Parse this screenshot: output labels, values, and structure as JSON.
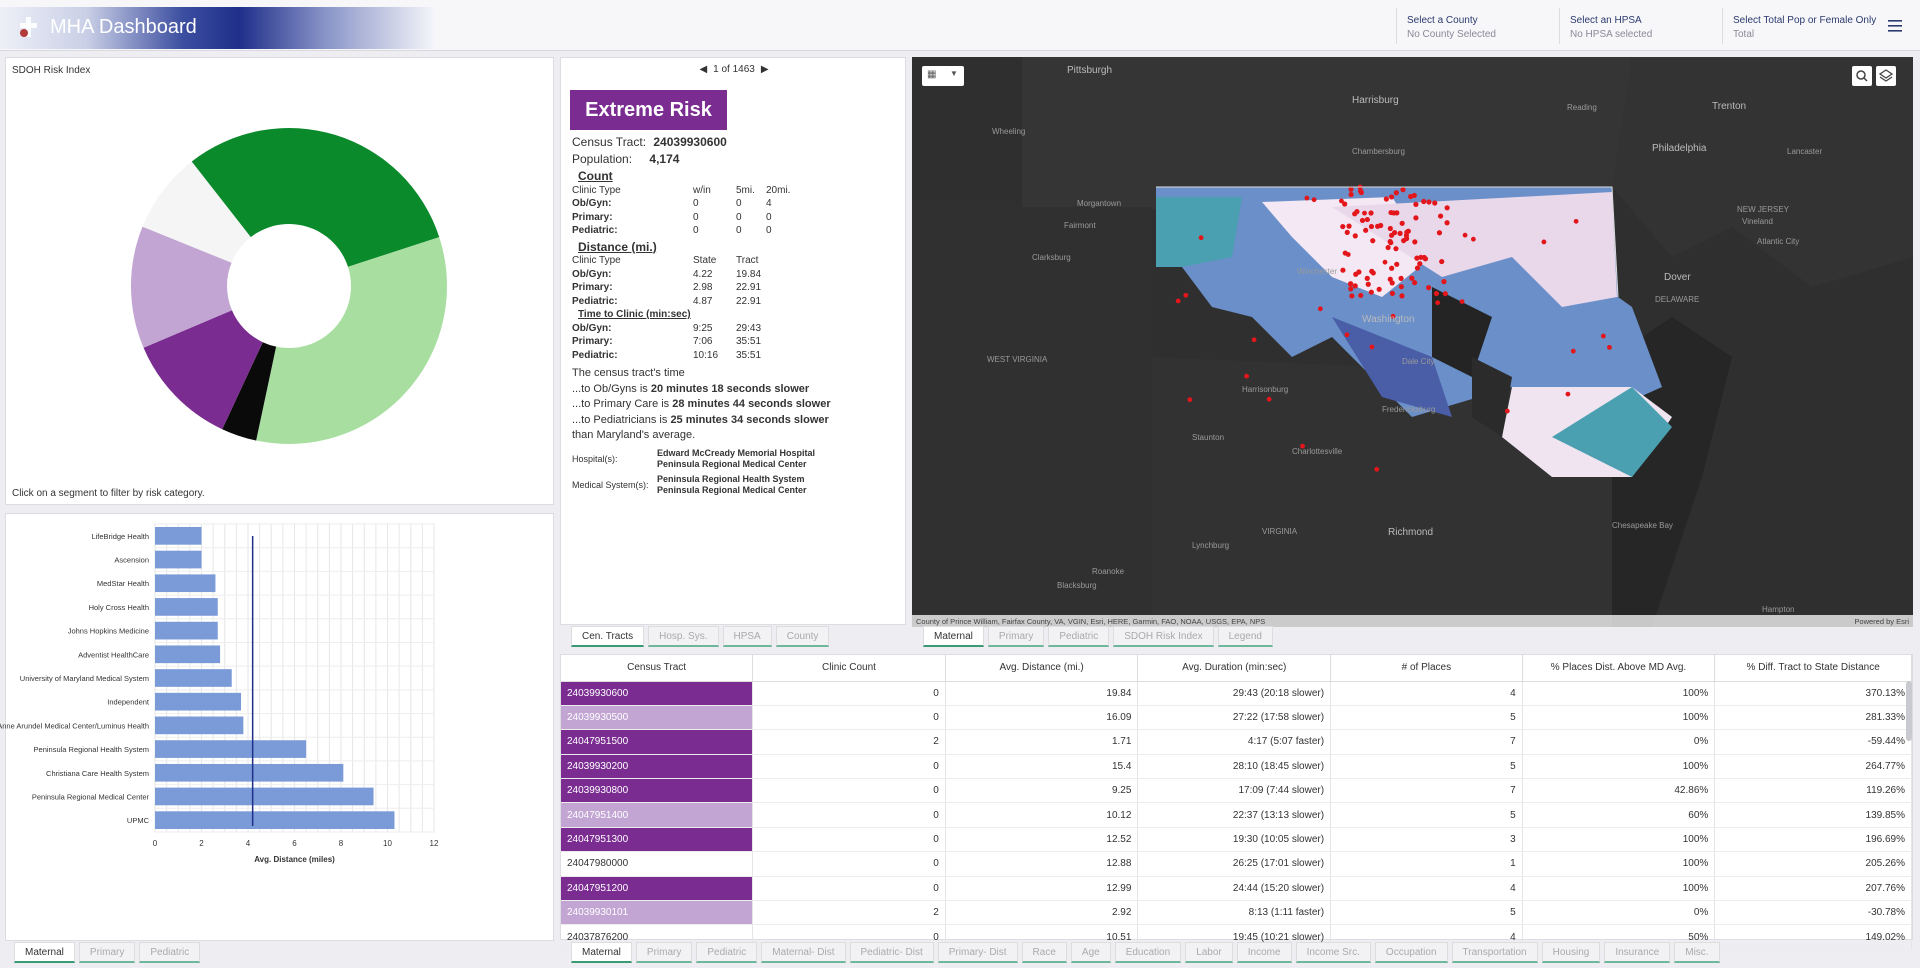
{
  "header": {
    "title": "MHA Dashboard",
    "selectors": [
      {
        "label": "Select a County",
        "value": "No County Selected"
      },
      {
        "label": "Select an HPSA",
        "value": "No HPSA selected"
      },
      {
        "label": "Select Total Pop or Female Only",
        "value": "Total"
      }
    ]
  },
  "donut": {
    "title": "SDOH Risk Index",
    "hint": "Click on a segment to filter by risk category.",
    "colors": {
      "green_dark": "#0b8a2c",
      "green_light": "#a8dfa1",
      "black": "#0a0a0a",
      "purple_dark": "#7a2c91",
      "purple_light": "#c2a5d3",
      "white": "#f5f5f5"
    }
  },
  "chart_data": {
    "type": "bar",
    "orientation": "horizontal",
    "categories": [
      "LifeBridge Health",
      "Ascension",
      "MedStar Health",
      "Holy Cross Health",
      "Johns Hopkins Medicine",
      "Adventist HealthCare",
      "University of Maryland Medical System",
      "Independent",
      "Anne Arundel Medical Center/Luminus Health",
      "Peninsula Regional Health System",
      "Christiana Care Health System",
      "Peninsula Regional Medical Center",
      "UPMC"
    ],
    "values": [
      2.0,
      2.0,
      2.6,
      2.7,
      2.7,
      2.8,
      3.3,
      3.7,
      3.8,
      6.5,
      8.1,
      9.4,
      10.3
    ],
    "reference_line": 4.2,
    "xlabel": "Avg. Distance (miles)",
    "xlim": [
      0,
      12
    ],
    "xticks": [
      "0",
      "2",
      "4",
      "6",
      "8",
      "10",
      "12"
    ],
    "bar_color": "#7b9bd8",
    "grid": true
  },
  "bar_tabs": [
    "Maternal",
    "Primary",
    "Pediatric"
  ],
  "pager": "1 of 1463",
  "info": {
    "risk": "Extreme Risk",
    "tract_label": "Census Tract:",
    "tract": "24039930600",
    "pop_label": "Population:",
    "pop": "4,174",
    "count_title": "Count",
    "count_head": [
      "Clinic Type",
      "w/in",
      "5mi.",
      "20mi."
    ],
    "count_rows": [
      [
        "Ob/Gyn:",
        "0",
        "0",
        "4"
      ],
      [
        "Primary:",
        "0",
        "0",
        "0"
      ],
      [
        "Pediatric:",
        "0",
        "0",
        "0"
      ]
    ],
    "dist_title": "Distance (mi.)",
    "dist_head": [
      "Clinic Type",
      "State",
      "Tract"
    ],
    "dist_rows": [
      [
        "Ob/Gyn:",
        "4.22",
        "19.84"
      ],
      [
        "Primary:",
        "2.98",
        "22.91"
      ],
      [
        "Pediatric:",
        "4.87",
        "22.91"
      ]
    ],
    "time_title": "Time to Clinic (min:sec)",
    "time_rows": [
      [
        "Ob/Gyn:",
        "9:25",
        "29:43"
      ],
      [
        "Primary:",
        "7:06",
        "35:51"
      ],
      [
        "Pediatric:",
        "10:16",
        "35:51"
      ]
    ],
    "s0": "The census tract's time",
    "s1a": "...to Ob/Gyns is ",
    "s1b": "20 minutes 18 seconds slower",
    "s2a": "...to Primary Care is ",
    "s2b": "28 minutes 44 seconds slower",
    "s3a": "...to Pediatricians is ",
    "s3b": "25 minutes 34 seconds slower",
    "s4": "than Maryland's average.",
    "hosp_label": "Hospital(s):",
    "hosp1": "Edward McCready Memorial Hospital",
    "hosp2": "Peninsula Regional Medical Center",
    "med_label": "Medical System(s):",
    "med1": "Peninsula Regional Health System",
    "med2": "Peninsula Regional Medical Center"
  },
  "info_tabs": [
    "Cen. Tracts",
    "Hosp. Sys.",
    "HPSA",
    "County"
  ],
  "map": {
    "labels": [
      "Pittsburgh",
      "Harrisburg",
      "Reading",
      "Trenton",
      "Chambersburg",
      "Philadelphia",
      "Lancaster",
      "Wheeling",
      "Morgantown",
      "Fairmont",
      "Clarksburg",
      "Winchester",
      "Washington",
      "Dover",
      "Atlantic City",
      "Vineland",
      "NEW JERSEY",
      "WEST VIRGINIA",
      "DELAWARE",
      "VIRGINIA",
      "Harrisonburg",
      "Staunton",
      "Charlottesville",
      "Fredericksburg",
      "Richmond",
      "Lynchburg",
      "Roanoke",
      "Blacksburg",
      "Hampton",
      "Chesapeake Bay",
      "Dale City"
    ],
    "attribution": "County of Prince William, Fairfax County, VA, VGIN, Esri, HERE, Garmin, FAO, NOAA, USGS, EPA, NPS",
    "powered": "Powered by Esri"
  },
  "map_tabs": [
    "Maternal",
    "Primary",
    "Pediatric",
    "SDOH Risk Index",
    "Legend"
  ],
  "table": {
    "headers": [
      "Census Tract",
      "Clinic Count",
      "Avg. Distance (mi.)",
      "Avg. Duration (min:sec)",
      "# of Places",
      "% Places Dist. Above MD Avg.",
      "% Diff. Tract to State Distance"
    ],
    "rows": [
      [
        "24039930600",
        "0",
        "19.84",
        "29:43 (20:18 slower)",
        "4",
        "100%",
        "370.13%"
      ],
      [
        "24039930500",
        "0",
        "16.09",
        "27:22 (17:58 slower)",
        "5",
        "100%",
        "281.33%"
      ],
      [
        "24047951500",
        "2",
        "1.71",
        "4:17 (5:07 faster)",
        "7",
        "0%",
        "-59.44%"
      ],
      [
        "24039930200",
        "0",
        "15.4",
        "28:10 (18:45 slower)",
        "5",
        "100%",
        "264.77%"
      ],
      [
        "24039930800",
        "0",
        "9.25",
        "17:09 (7:44 slower)",
        "7",
        "42.86%",
        "119.26%"
      ],
      [
        "24047951400",
        "0",
        "10.12",
        "22:37 (13:13 slower)",
        "5",
        "60%",
        "139.85%"
      ],
      [
        "24047951300",
        "0",
        "12.52",
        "19:30 (10:05 slower)",
        "3",
        "100%",
        "196.69%"
      ],
      [
        "24047980000",
        "0",
        "12.88",
        "26:25 (17:01 slower)",
        "1",
        "100%",
        "205.26%"
      ],
      [
        "24047951200",
        "0",
        "12.99",
        "24:44 (15:20 slower)",
        "4",
        "100%",
        "207.76%"
      ],
      [
        "24039930101",
        "2",
        "2.92",
        "8:13 (1:11 faster)",
        "5",
        "0%",
        "-30.78%"
      ],
      [
        "24037876200",
        "0",
        "10.51",
        "19:45 (10:21 slower)",
        "4",
        "50%",
        "149.02%"
      ]
    ],
    "row_colors": [
      "c1",
      "c2",
      "c1",
      "c1",
      "c1",
      "c2",
      "c1",
      "c0",
      "c1",
      "c2",
      "c0"
    ]
  },
  "bottom_tabs": [
    "Maternal",
    "Primary",
    "Pediatric",
    "Maternal- Dist",
    "Pediatric- Dist",
    "Primary- Dist",
    "Race",
    "Age",
    "Education",
    "Labor",
    "Income",
    "Income Src.",
    "Occupation",
    "Transportation",
    "Housing",
    "Insurance",
    "Misc."
  ]
}
